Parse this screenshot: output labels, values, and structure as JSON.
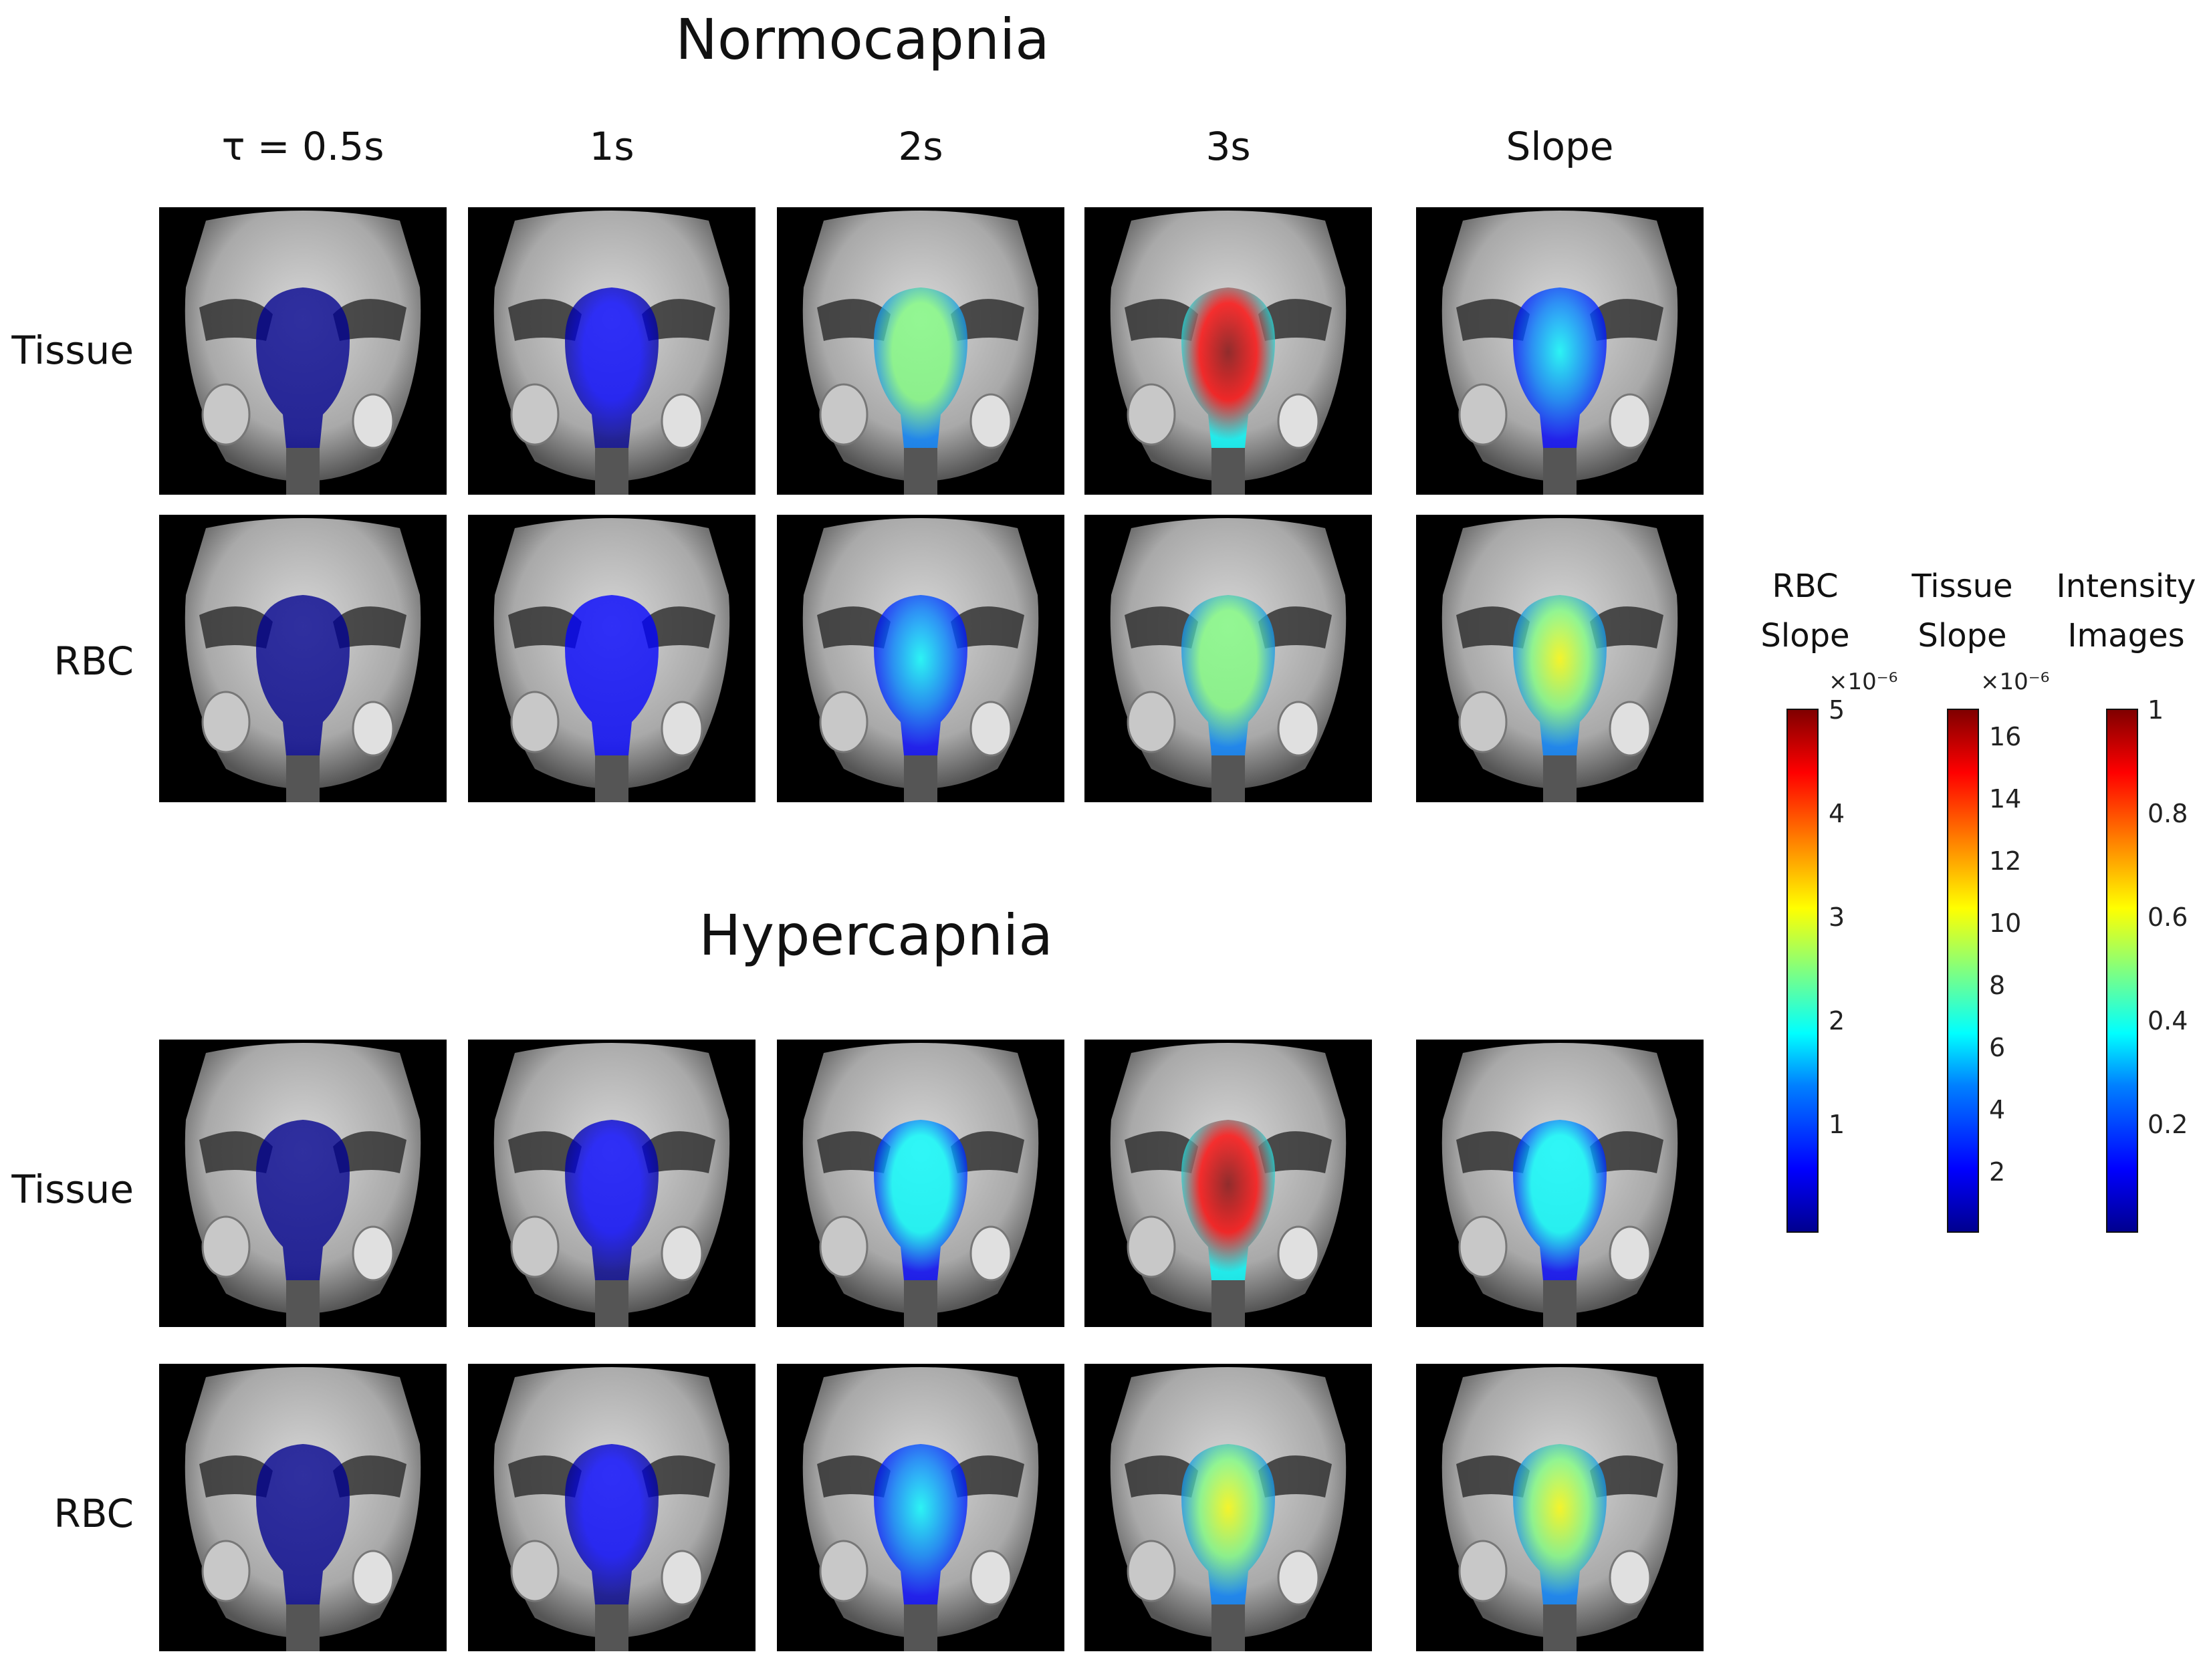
{
  "sections": [
    {
      "title": "Normocapnia"
    },
    {
      "title": "Hypercapnia"
    }
  ],
  "columns": [
    "τ = 0.5s",
    "1s",
    "2s",
    "3s",
    "Slope"
  ],
  "rows": [
    "Tissue",
    "RBC"
  ],
  "colorbars": [
    {
      "title_line1": "RBC",
      "title_line2": "Slope",
      "exponent": "×10⁻⁶",
      "ticks": [
        "5",
        "4",
        "3",
        "2",
        "1"
      ]
    },
    {
      "title_line1": "Tissue",
      "title_line2": "Slope",
      "exponent": "×10⁻⁶",
      "ticks": [
        "16",
        "14",
        "12",
        "10",
        "8",
        "6",
        "4",
        "2"
      ]
    },
    {
      "title_line1": "Intensity",
      "title_line2": "Images",
      "exponent": "",
      "ticks": [
        "1",
        "0.8",
        "0.6",
        "0.4",
        "0.2"
      ]
    }
  ],
  "colormap": [
    "#00008f",
    "#0000ff",
    "#0080ff",
    "#00ffff",
    "#80ff80",
    "#ffff00",
    "#ff8000",
    "#ff0000",
    "#800000"
  ],
  "panel_intensity": {
    "normocapnia_tissue": [
      0.05,
      0.12,
      0.45,
      0.85,
      0.3
    ],
    "normocapnia_rbc": [
      0.05,
      0.15,
      0.3,
      0.45,
      0.55
    ],
    "hypercapnia_tissue": [
      0.05,
      0.08,
      0.35,
      0.85,
      0.35
    ],
    "hypercapnia_rbc": [
      0.05,
      0.12,
      0.3,
      0.5,
      0.5
    ]
  }
}
